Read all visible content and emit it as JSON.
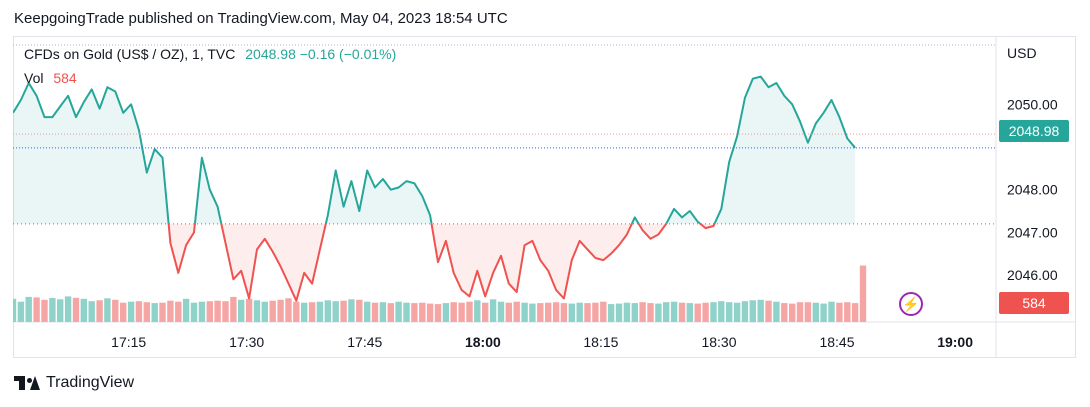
{
  "header": {
    "published": "KeepgoingTrade published on TradingView.com, May 04, 2023 18:54 UTC"
  },
  "legend": {
    "symbol": "CFDs on Gold (US$ / OZ), 1, TVC",
    "values": "2048.98  −0.16 (−0.01%)",
    "vol_label": "Vol",
    "vol_value": "584"
  },
  "axis": {
    "currency": "USD",
    "last_price_badge": "2048.98",
    "volume_badge": "584"
  },
  "footer": {
    "brand": "TradingView"
  },
  "colors": {
    "up": "#26a69a",
    "down": "#ef5350",
    "up_fill": "#26a69a",
    "down_fill": "#ef5350",
    "vol_up": "#8fd2c9",
    "vol_down": "#f5a6a4"
  },
  "chart_data": {
    "type": "area",
    "baseline": 2047.2,
    "last_price": 2048.98,
    "reference_line": 2049.3,
    "ylim": [
      2044.9,
      2051.6
    ],
    "y_ticks": [
      2046.0,
      2047.0,
      2048.0,
      2050.0
    ],
    "y_tick_labels": [
      "2046.00",
      "2047.00",
      "2048.00",
      "2050.00"
    ],
    "x_ticks": [
      "17:15",
      "17:30",
      "17:45",
      "18:00",
      "18:15",
      "18:30",
      "18:45",
      "19:00"
    ],
    "x_tick_minutes": [
      15,
      30,
      45,
      60,
      75,
      90,
      105,
      120
    ],
    "xlim": [
      0.3,
      125.2
    ],
    "price_minutes_start": 0.3,
    "price_minutes_step": 1,
    "price": [
      2049.8,
      2050.1,
      2050.5,
      2050.2,
      2049.7,
      2049.7,
      2049.95,
      2050.2,
      2049.7,
      2050.05,
      2050.35,
      2049.9,
      2050.4,
      2050.3,
      2049.8,
      2050.0,
      2049.4,
      2048.4,
      2048.95,
      2048.75,
      2046.75,
      2046.05,
      2046.7,
      2047.0,
      2048.75,
      2048.0,
      2047.6,
      2046.75,
      2045.9,
      2046.1,
      2045.45,
      2046.6,
      2046.85,
      2046.55,
      2046.2,
      2045.8,
      2045.4,
      2046.05,
      2045.8,
      2046.6,
      2047.4,
      2048.45,
      2047.6,
      2048.2,
      2047.5,
      2048.45,
      2048.05,
      2048.25,
      2048.0,
      2048.05,
      2048.2,
      2048.15,
      2047.85,
      2047.4,
      2046.3,
      2046.8,
      2046.05,
      2045.65,
      2045.5,
      2046.1,
      2045.5,
      2046.05,
      2046.45,
      2045.8,
      2045.6,
      2046.7,
      2046.8,
      2046.35,
      2046.1,
      2045.65,
      2045.45,
      2046.35,
      2046.8,
      2046.6,
      2046.4,
      2046.35,
      2046.5,
      2046.7,
      2046.95,
      2047.35,
      2047.05,
      2046.85,
      2046.95,
      2047.2,
      2047.55,
      2047.35,
      2047.5,
      2047.25,
      2047.1,
      2047.15,
      2047.55,
      2048.65,
      2049.25,
      2050.15,
      2050.6,
      2050.65,
      2050.4,
      2050.5,
      2050.2,
      2050.0,
      2049.6,
      2049.1,
      2049.55,
      2049.8,
      2050.1,
      2049.7,
      2049.2,
      2048.98
    ],
    "volume": [
      240,
      210,
      260,
      255,
      230,
      248,
      235,
      265,
      250,
      240,
      215,
      225,
      245,
      230,
      200,
      210,
      215,
      205,
      195,
      200,
      220,
      210,
      240,
      200,
      210,
      215,
      220,
      215,
      260,
      230,
      240,
      225,
      210,
      220,
      230,
      245,
      210,
      200,
      205,
      210,
      225,
      215,
      220,
      235,
      230,
      210,
      200,
      205,
      195,
      210,
      200,
      195,
      200,
      190,
      185,
      195,
      205,
      200,
      210,
      225,
      200,
      235,
      210,
      200,
      210,
      200,
      190,
      195,
      200,
      205,
      195,
      190,
      200,
      195,
      200,
      210,
      185,
      190,
      200,
      195,
      205,
      195,
      190,
      205,
      210,
      200,
      195,
      190,
      200,
      205,
      215,
      205,
      200,
      215,
      225,
      230,
      220,
      210,
      195,
      190,
      205,
      205,
      200,
      190,
      210,
      200,
      205,
      195,
      584
    ],
    "volume_max": 600
  }
}
